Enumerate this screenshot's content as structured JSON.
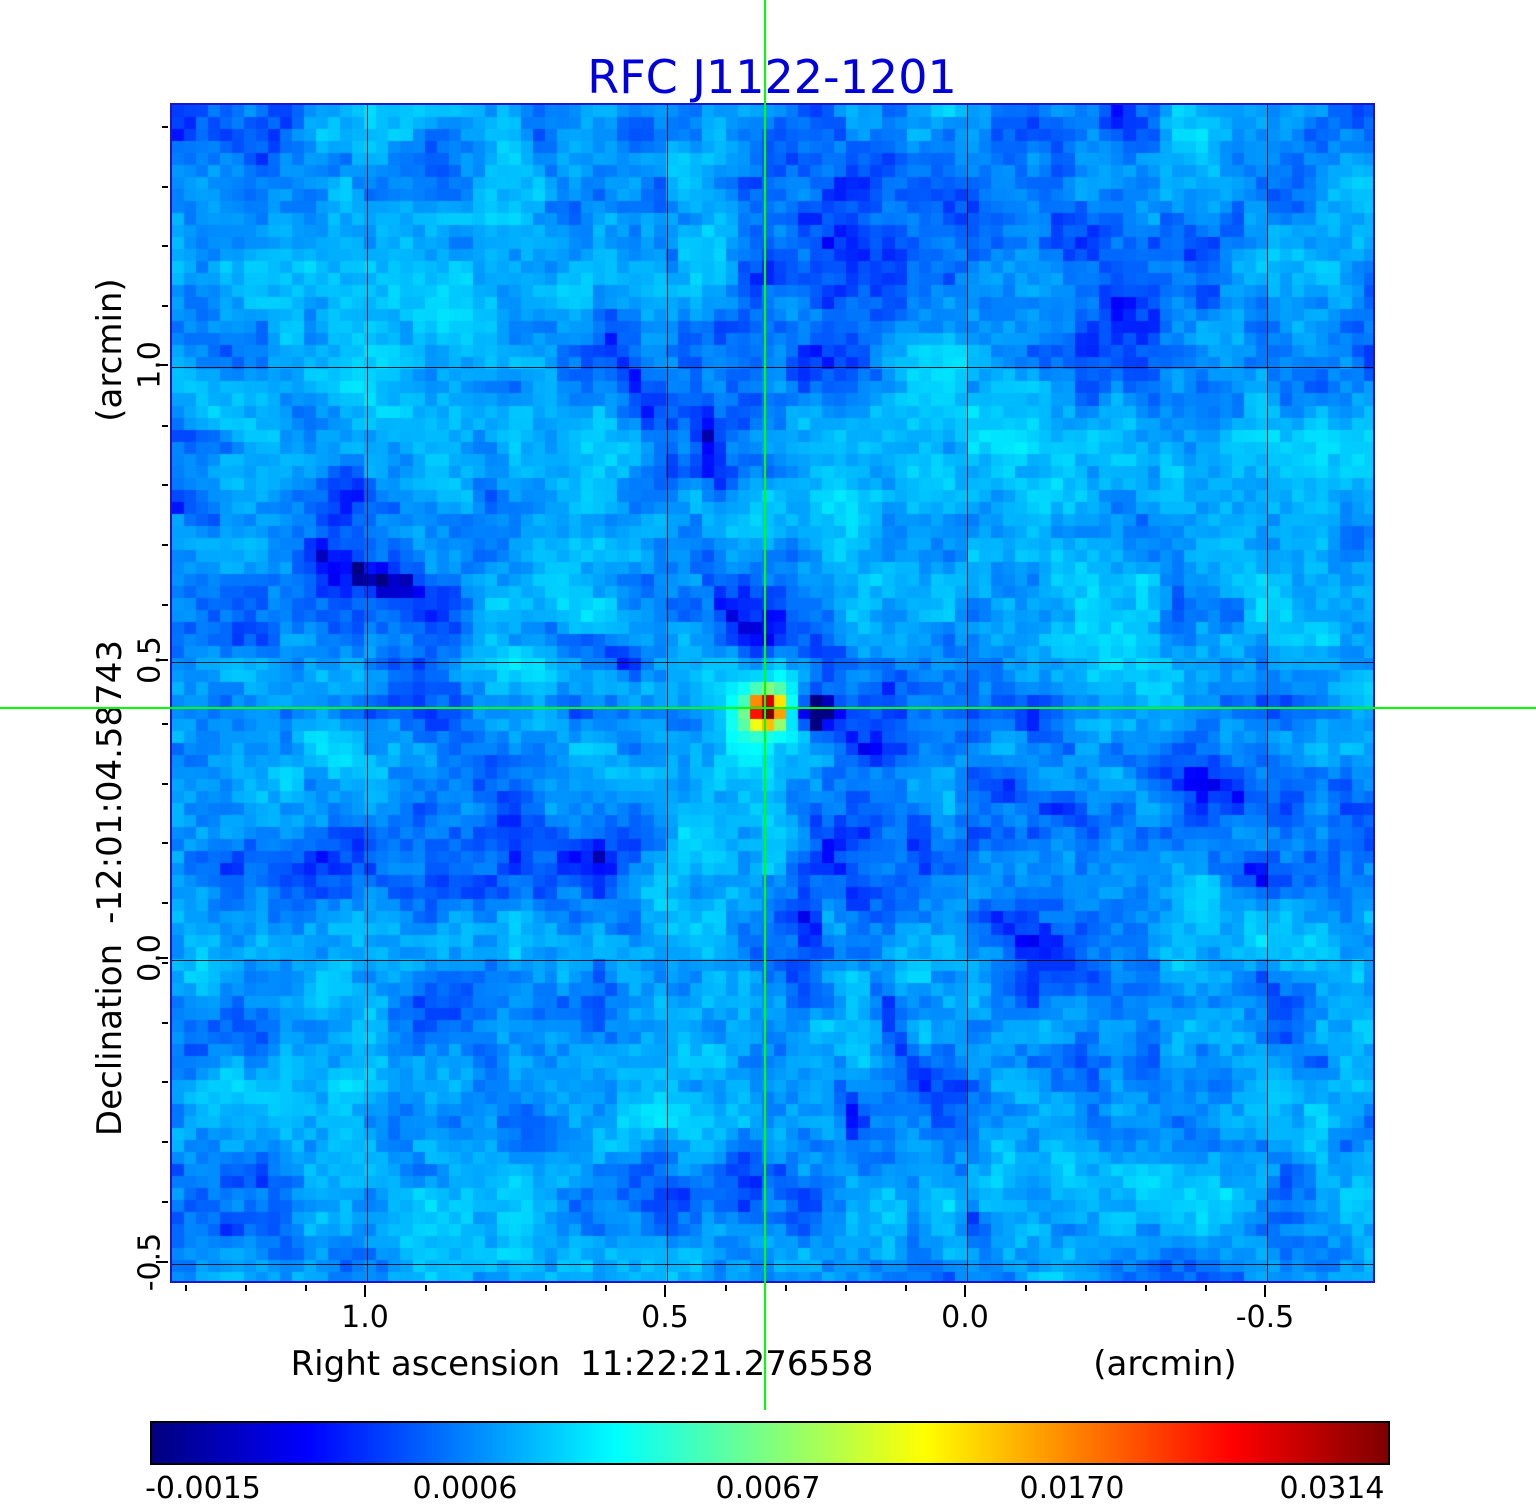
{
  "title": {
    "text": "RFC J1122-1201",
    "color": "#0000dd"
  },
  "axes": {
    "x": {
      "label": "Right ascension",
      "coordinate": "11:22:21.276558",
      "unit": "(arcmin)",
      "ticks": [
        "1.0",
        "0.5",
        "0.0",
        "-0.5"
      ]
    },
    "y": {
      "label": "Declination",
      "coordinate": "-12:01:04.58743",
      "unit": "(arcmin)",
      "ticks": [
        "1.0",
        "0.5",
        "0.0",
        "-0.5"
      ]
    }
  },
  "colorbar": {
    "tick_labels": [
      "-0.0015",
      "0.0006",
      "0.0067",
      "0.0170",
      "0.0314"
    ],
    "colormap": "jet",
    "orientation": "horizontal"
  },
  "chart_data": {
    "type": "heatmap",
    "title": "RFC J1122-1201",
    "xlabel": "Right ascension 11:22:21.276558 (arcmin)",
    "ylabel": "Declination -12:01:04.58743 (arcmin)",
    "x_ticks": [
      1.0,
      0.5,
      0.0,
      -0.5
    ],
    "y_ticks": [
      1.0,
      0.5,
      0.0,
      -0.5
    ],
    "xlim": [
      1.325,
      -0.683
    ],
    "ylim": [
      -0.517,
      1.438
    ],
    "grid": true,
    "colormap": "jet",
    "value_scale": "squared",
    "value_range": [
      -0.0015,
      0.0314
    ],
    "value_ticks": [
      -0.0015,
      0.0006,
      0.0067,
      0.017,
      0.0314
    ],
    "peak_value": 0.0314,
    "background_level": 0.0009,
    "crosshair_arcmin": [
      0.333,
      0.42
    ],
    "crosshair_color": "#00ff00",
    "grid_color": "#000000",
    "grid_cells": [
      100,
      98
    ],
    "seed": 7,
    "source": {
      "x_frac": 0.4938,
      "y_frac": 0.5127,
      "core_amp": 0.034,
      "core_sigma": 0.8,
      "halo_amp": 0.006,
      "halo_sigma": 2.3,
      "dip_amp": 0.0035,
      "dip_dx": 4.2
    },
    "streaks": [
      {
        "deg": 0,
        "depth": 0.0011,
        "width": 0.9
      },
      {
        "deg": 78,
        "depth": 0.0013,
        "width": 0.8
      },
      {
        "deg": 19,
        "depth": 0.0012,
        "width": 0.9
      },
      {
        "deg": 68,
        "depth": 0.0013,
        "width": 0.8
      },
      {
        "deg": 19,
        "depth": 0.0008,
        "width": 1.1,
        "offset": -6
      },
      {
        "deg": 12,
        "depth": 0.0007,
        "width": 1.0,
        "offset": 14
      }
    ]
  }
}
